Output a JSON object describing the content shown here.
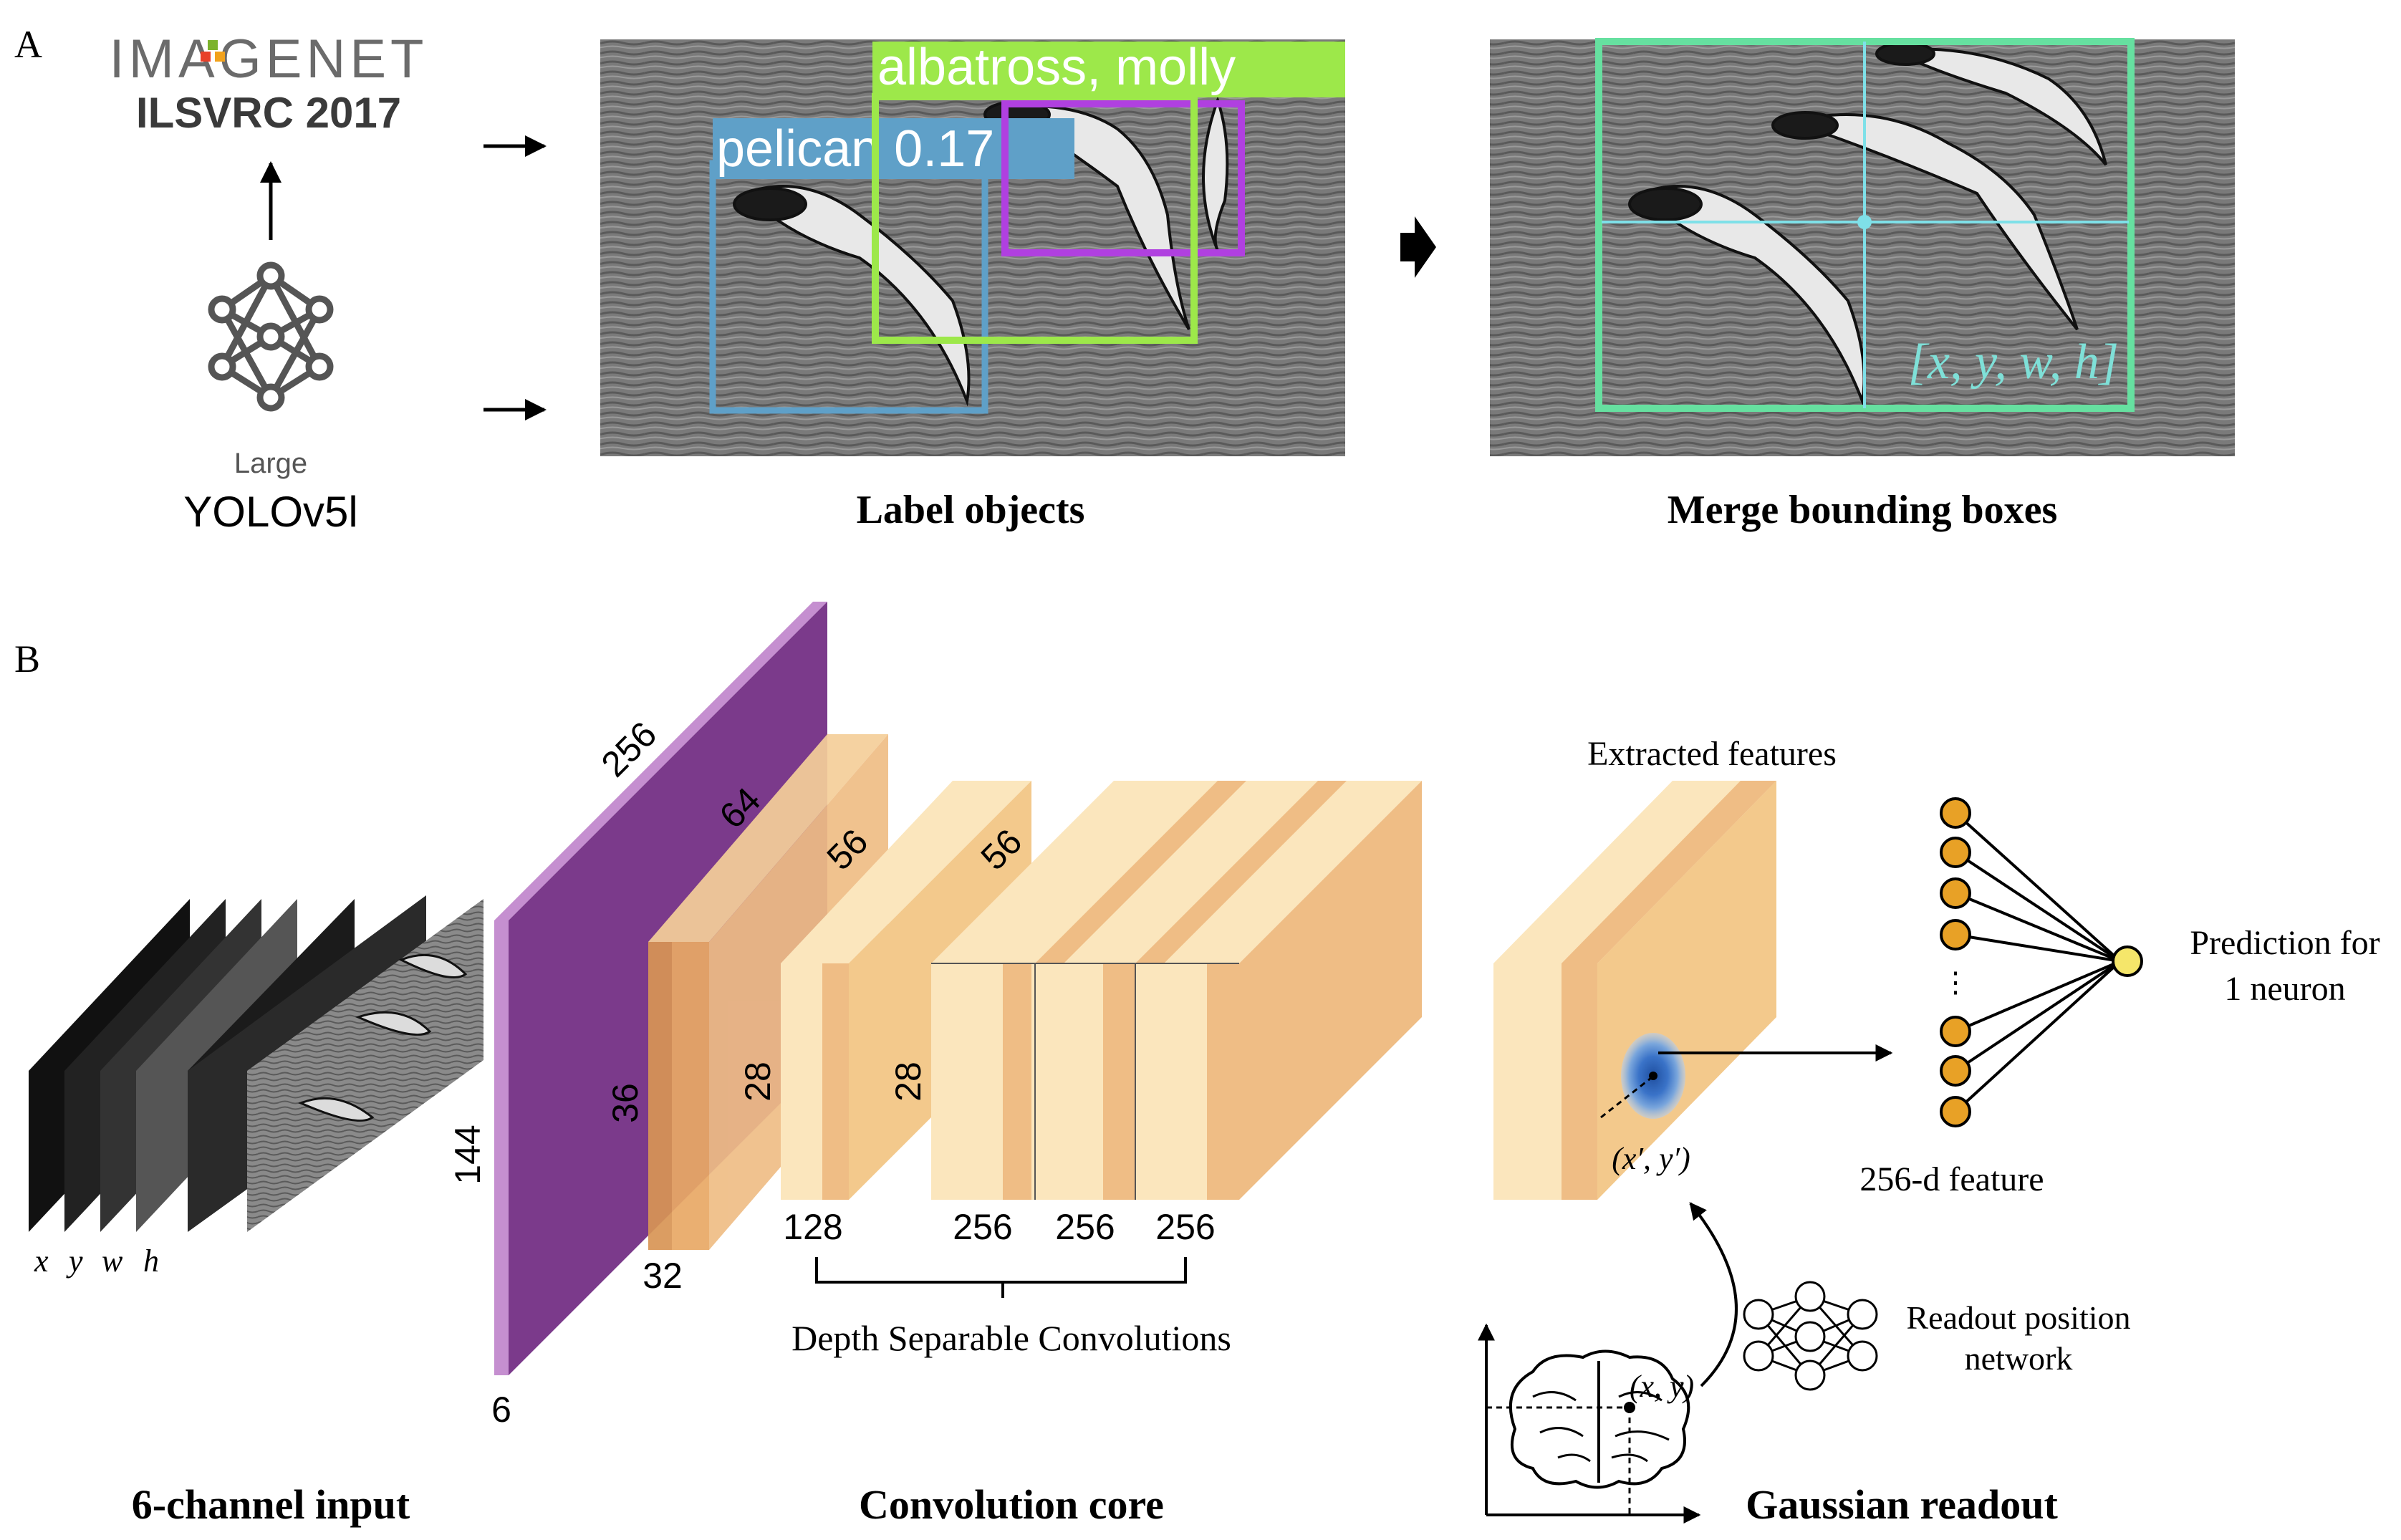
{
  "panel_a": {
    "label": "A",
    "imagenet_logo": "IMAGENET",
    "ilsvrc": "ILSVRC 2017",
    "model_size": "Large",
    "model_name": "YOLOv5l",
    "detect_label_pelican": "pelican  0.17",
    "detect_label_albatross": "albatross, molly",
    "merged_box_label": "[x, y, w, h]",
    "caption_label": "Label objects",
    "caption_merge": "Merge bounding boxes"
  },
  "panel_b": {
    "label": "B",
    "channel_labels": [
      "x",
      "y",
      "w",
      "h"
    ],
    "input_caption": "6-channel input",
    "conv": {
      "l1_width": "256",
      "l1_height": "144",
      "l1_depth": "6",
      "l2_width": "64",
      "l2_height": "36",
      "l2_depth": "32",
      "l3_width": "56",
      "l3_height": "28",
      "l3_depth": "128",
      "l4_width": "56",
      "l4_height": "28",
      "l4_depth_a": "256",
      "l4_depth_b": "256",
      "l4_depth_c": "256",
      "bracket_label": "Depth Separable Convolutions",
      "caption": "Convolution core"
    },
    "readout": {
      "extracted": "Extracted features",
      "xy_prime": "(x′, y′)",
      "xy": "(x, y)",
      "feature": "256-d feature",
      "position_net": [
        "Readout position",
        "network"
      ],
      "prediction": [
        "Prediction for",
        "1 neuron"
      ],
      "ellipsis": "⋮",
      "caption": "Gaussian readout"
    }
  },
  "colors": {
    "purple": "#7b3a8b",
    "orange_light": "#fbe6bd",
    "orange_mid": "#f3c98c",
    "orange_dark": "#e9a966",
    "node_orange": "#e8a126",
    "green_box": "#9de84a",
    "teal_box": "#66c8c0",
    "blue_box": "#5fa0c8",
    "violet_box": "#b040e0"
  }
}
